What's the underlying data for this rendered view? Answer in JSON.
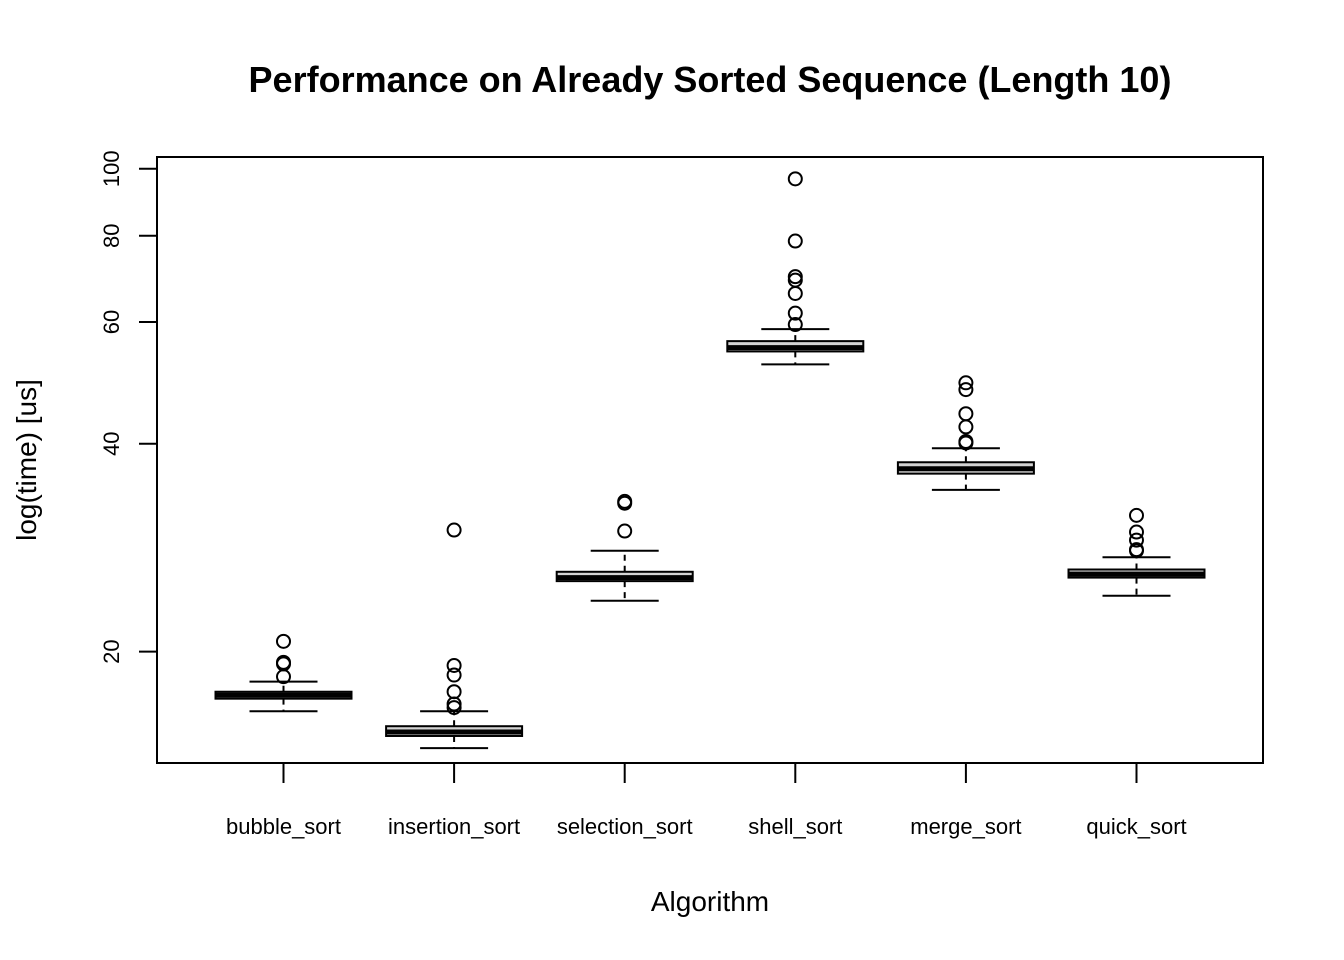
{
  "chart_data": {
    "type": "boxplot",
    "title": "Performance on Already Sorted Sequence (Length 10)",
    "xlabel": "Algorithm",
    "ylabel": "log(time) [us]",
    "y_scale": "log",
    "y_ticks": [
      20,
      40,
      60,
      80,
      100
    ],
    "y_tick_labels": [
      "20",
      "40",
      "60",
      "80",
      "100"
    ],
    "ylim": [
      13.8,
      104
    ],
    "grid": false,
    "legend": "none",
    "box_color": "#d3d3d3",
    "categories": [
      "bubble_sort",
      "insertion_sort",
      "selection_sort",
      "shell_sort",
      "merge_sort",
      "quick_sort"
    ],
    "boxes": [
      {
        "name": "bubble_sort",
        "whisker_low": 16.4,
        "q1": 17.1,
        "median": 17.3,
        "q3": 17.5,
        "whisker_high": 18.1,
        "outliers": [
          18.4,
          19.2,
          19.3,
          20.7
        ]
      },
      {
        "name": "insertion_sort",
        "whisker_low": 14.5,
        "q1": 15.1,
        "median": 15.3,
        "q3": 15.6,
        "whisker_high": 16.4,
        "outliers": [
          16.6,
          16.8,
          17.5,
          18.5,
          19.1,
          30.0
        ]
      },
      {
        "name": "selection_sort",
        "whisker_low": 23.7,
        "q1": 25.3,
        "median": 25.6,
        "q3": 26.1,
        "whisker_high": 28.0,
        "outliers": [
          29.9,
          32.8,
          33.0
        ]
      },
      {
        "name": "shell_sort",
        "whisker_low": 52.1,
        "q1": 54.4,
        "median": 55.1,
        "q3": 56.3,
        "whisker_high": 58.6,
        "outliers": [
          59.5,
          61.8,
          66.0,
          69.0,
          69.8,
          78.6,
          96.7
        ]
      },
      {
        "name": "merge_sort",
        "whisker_low": 34.3,
        "q1": 36.2,
        "median": 36.8,
        "q3": 37.6,
        "whisker_high": 39.4,
        "outliers": [
          40.1,
          40.3,
          42.3,
          44.2,
          47.9,
          49.0
        ]
      },
      {
        "name": "quick_sort",
        "whisker_low": 24.1,
        "q1": 25.6,
        "median": 25.9,
        "q3": 26.3,
        "whisker_high": 27.4,
        "outliers": [
          28.0,
          28.1,
          29.0,
          29.8,
          31.5
        ]
      }
    ]
  }
}
